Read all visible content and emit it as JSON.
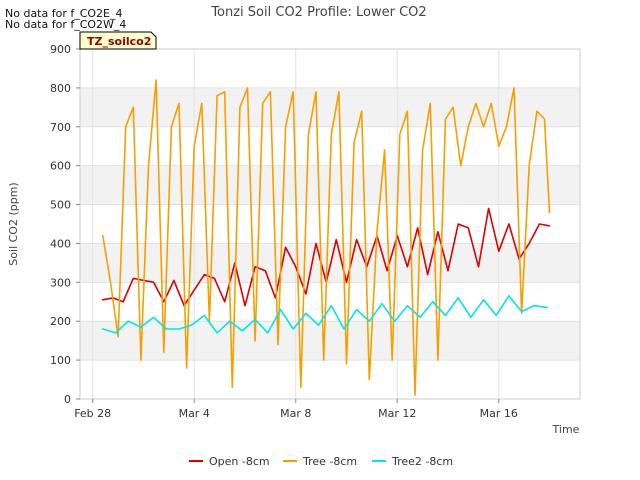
{
  "nodata_messages": [
    "No data for f_CO2E_4",
    "No data for f_CO2W_4"
  ],
  "site_badge": "TZ_soilco2",
  "chart_data": {
    "type": "line",
    "title": "Tonzi Soil CO2 Profile: Lower CO2",
    "xlabel": "Time",
    "ylabel": "Soil CO2 (ppm)",
    "xlim": [
      -0.5,
      19.2
    ],
    "ylim": [
      0,
      900
    ],
    "x_ticks": [
      {
        "value": 0,
        "label": "Feb 28"
      },
      {
        "value": 4,
        "label": "Mar 4"
      },
      {
        "value": 8,
        "label": "Mar 8"
      },
      {
        "value": 12,
        "label": "Mar 12"
      },
      {
        "value": 16,
        "label": "Mar 16"
      }
    ],
    "y_ticks": [
      0,
      100,
      200,
      300,
      400,
      500,
      600,
      700,
      800,
      900
    ],
    "grid": true,
    "legend_position": "bottom",
    "series": [
      {
        "name": "Open -8cm",
        "color": "#dd0000",
        "x": [
          0.4,
          0.8,
          1.2,
          1.6,
          2.0,
          2.4,
          2.8,
          3.2,
          3.6,
          4.0,
          4.4,
          4.8,
          5.2,
          5.6,
          6.0,
          6.4,
          6.8,
          7.2,
          7.6,
          8.0,
          8.4,
          8.8,
          9.2,
          9.6,
          10.0,
          10.4,
          10.8,
          11.2,
          11.6,
          12.0,
          12.4,
          12.8,
          13.2,
          13.6,
          14.0,
          14.4,
          14.8,
          15.2,
          15.6,
          16.0,
          16.4,
          16.8,
          17.2,
          17.6,
          18.0
        ],
        "y": [
          255,
          260,
          250,
          310,
          305,
          300,
          250,
          305,
          240,
          280,
          320,
          310,
          250,
          350,
          240,
          340,
          330,
          260,
          390,
          340,
          270,
          400,
          300,
          410,
          300,
          410,
          340,
          420,
          330,
          420,
          340,
          440,
          320,
          430,
          330,
          450,
          440,
          340,
          490,
          380,
          450,
          360,
          400,
          450,
          445
        ]
      },
      {
        "name": "Tree -8cm",
        "color": "#f5a000",
        "x": [
          0.4,
          0.7,
          1.0,
          1.3,
          1.6,
          1.9,
          2.2,
          2.5,
          2.8,
          3.1,
          3.4,
          3.7,
          4.0,
          4.3,
          4.6,
          4.9,
          5.2,
          5.5,
          5.8,
          6.1,
          6.4,
          6.7,
          7.0,
          7.3,
          7.6,
          7.9,
          8.2,
          8.5,
          8.8,
          9.1,
          9.4,
          9.7,
          10.0,
          10.3,
          10.6,
          10.9,
          11.2,
          11.5,
          11.8,
          12.1,
          12.4,
          12.7,
          13.0,
          13.3,
          13.6,
          13.9,
          14.2,
          14.5,
          14.8,
          15.1,
          15.4,
          15.7,
          16.0,
          16.3,
          16.6,
          16.9,
          17.2,
          17.5,
          17.8,
          18.0
        ],
        "y": [
          420,
          300,
          160,
          700,
          750,
          100,
          600,
          820,
          120,
          700,
          760,
          80,
          650,
          760,
          200,
          780,
          790,
          30,
          750,
          800,
          150,
          760,
          790,
          140,
          700,
          790,
          30,
          680,
          790,
          100,
          680,
          790,
          90,
          660,
          740,
          50,
          430,
          640,
          100,
          680,
          740,
          10,
          640,
          760,
          100,
          720,
          750,
          600,
          700,
          760,
          700,
          760,
          650,
          700,
          800,
          220,
          600,
          740,
          720,
          480
        ]
      },
      {
        "name": "Tree2 -8cm",
        "color": "#00e5ee",
        "x": [
          0.4,
          0.9,
          1.4,
          1.9,
          2.4,
          2.9,
          3.4,
          3.9,
          4.4,
          4.9,
          5.4,
          5.9,
          6.4,
          6.9,
          7.4,
          7.9,
          8.4,
          8.9,
          9.4,
          9.9,
          10.4,
          10.9,
          11.4,
          11.9,
          12.4,
          12.9,
          13.4,
          13.9,
          14.4,
          14.9,
          15.4,
          15.9,
          16.4,
          16.9,
          17.4,
          17.9
        ],
        "y": [
          180,
          170,
          200,
          185,
          210,
          180,
          180,
          190,
          215,
          170,
          200,
          175,
          205,
          170,
          230,
          180,
          220,
          190,
          240,
          180,
          230,
          200,
          245,
          200,
          240,
          210,
          250,
          215,
          260,
          210,
          255,
          215,
          265,
          225,
          240,
          235
        ]
      }
    ]
  }
}
